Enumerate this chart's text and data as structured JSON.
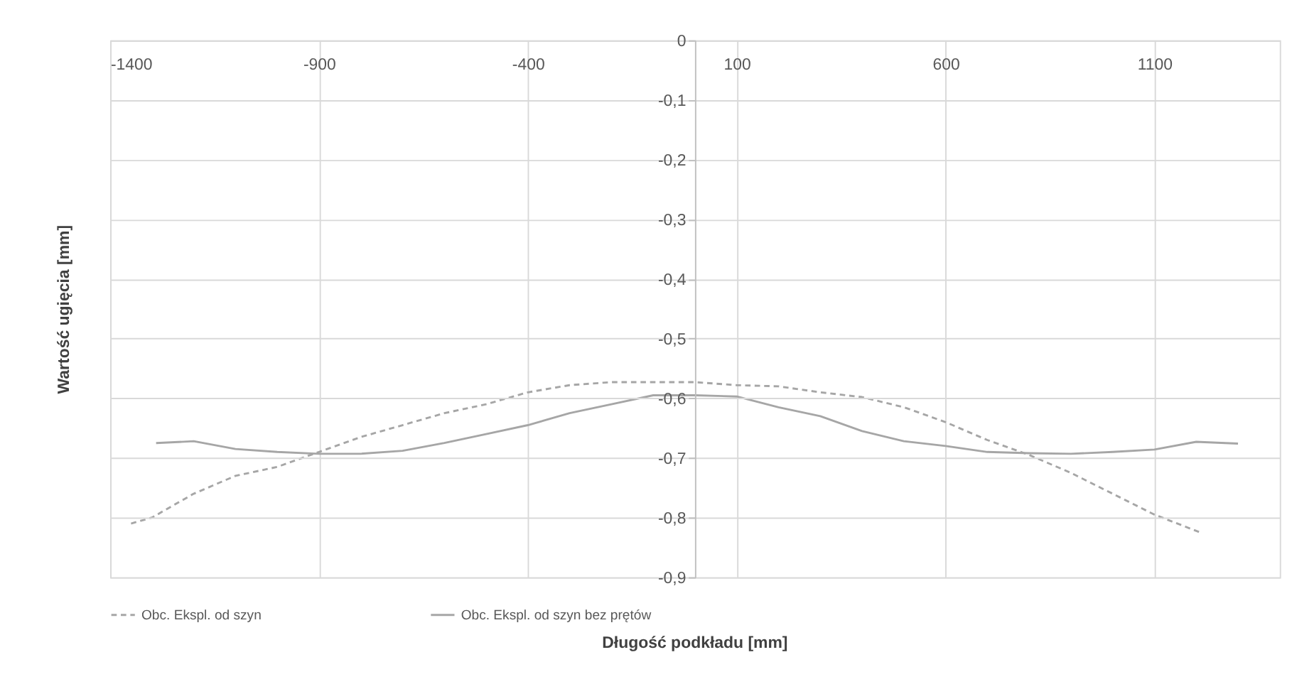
{
  "chart_data": {
    "type": "line",
    "xlabel": "Długość podkładu  [mm]",
    "ylabel": "Wartość ugięcia [mm]",
    "xlim": [
      -1400,
      1400
    ],
    "xticks": [
      -1400,
      -900,
      -400,
      100,
      600,
      1100
    ],
    "ylim": [
      -0.9,
      0
    ],
    "yticks": [
      0,
      {
        "value": -0.1,
        "label": "-0,1"
      },
      {
        "value": -0.2,
        "label": "-0,2"
      },
      {
        "value": -0.3,
        "label": "-0,3"
      },
      {
        "value": -0.4,
        "label": "-0,4"
      },
      {
        "value": -0.5,
        "label": "-0,5"
      },
      {
        "value": -0.6,
        "label": "-0,6"
      },
      {
        "value": -0.7,
        "label": "-0,7"
      },
      {
        "value": -0.8,
        "label": "-0,8"
      },
      {
        "value": -0.9,
        "label": "-0,9"
      }
    ],
    "grid": true,
    "legend": "bottom",
    "marker": "none",
    "series": [
      {
        "name": "Obc. Ekspl. od szyn",
        "color": "#a6a6a6",
        "line_style": "dashed",
        "x": [
          -1350,
          -1300,
          -1200,
          -1100,
          -1000,
          -900,
          -800,
          -700,
          -600,
          -500,
          -400,
          -300,
          -200,
          -100,
          0,
          100,
          200,
          300,
          400,
          500,
          600,
          700,
          800,
          900,
          1000,
          1100,
          1210
        ],
        "values": [
          -0.81,
          -0.8,
          -0.76,
          -0.73,
          -0.715,
          -0.69,
          -0.665,
          -0.645,
          -0.625,
          -0.61,
          -0.59,
          -0.578,
          -0.573,
          -0.573,
          -0.573,
          -0.578,
          -0.58,
          -0.59,
          -0.598,
          -0.615,
          -0.64,
          -0.67,
          -0.695,
          -0.725,
          -0.76,
          -0.795,
          -0.825
        ]
      },
      {
        "name": "Obc. Ekspl. od szyn bez prętów",
        "color": "#a6a6a6",
        "line_style": "solid",
        "x": [
          -1290,
          -1200,
          -1100,
          -1000,
          -900,
          -800,
          -700,
          -600,
          -500,
          -400,
          -300,
          -200,
          -100,
          0,
          100,
          200,
          300,
          400,
          500,
          600,
          700,
          800,
          900,
          1000,
          1100,
          1200,
          1300
        ],
        "values": [
          -0.675,
          -0.672,
          -0.685,
          -0.69,
          -0.693,
          -0.693,
          -0.688,
          -0.675,
          -0.66,
          -0.645,
          -0.625,
          -0.61,
          -0.595,
          -0.595,
          -0.597,
          -0.615,
          -0.63,
          -0.655,
          -0.672,
          -0.68,
          -0.69,
          -0.692,
          -0.693,
          -0.69,
          -0.686,
          -0.673,
          -0.676
        ]
      }
    ]
  }
}
